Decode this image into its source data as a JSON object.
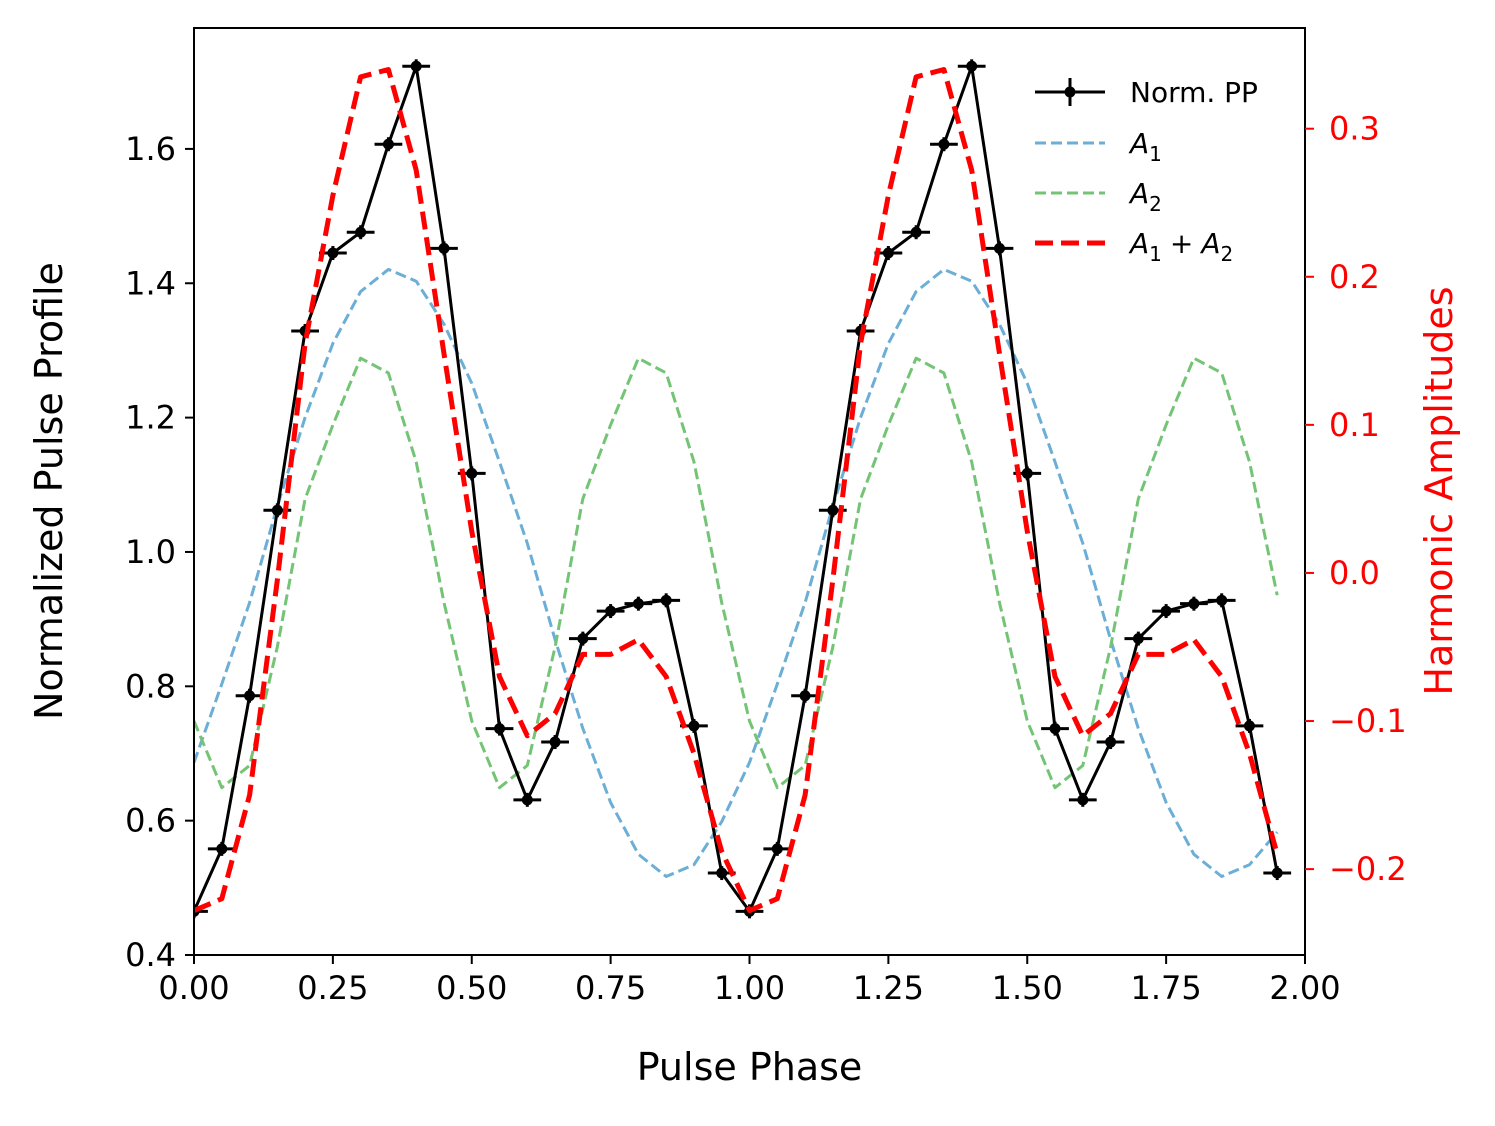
{
  "chart_data": {
    "type": "line",
    "xlabel": "Pulse Phase",
    "ylabel_left": "Normalized Pulse Profile",
    "ylabel_right": "Harmonic Amplitudes",
    "xlim": [
      0.0,
      2.0
    ],
    "ylim_left": [
      0.4,
      1.78
    ],
    "ylim_right": [
      -0.258,
      0.368
    ],
    "grid": false,
    "legend_position": "top-right",
    "colors": {
      "profile": "#000000",
      "a1": "#6baed6",
      "a2": "#74c476",
      "sum": "#ff0000",
      "right_axis": "#ff0000"
    },
    "x_ticks": [
      {
        "value": 0.0,
        "label": "0.00"
      },
      {
        "value": 0.25,
        "label": "0.25"
      },
      {
        "value": 0.5,
        "label": "0.50"
      },
      {
        "value": 0.75,
        "label": "0.75"
      },
      {
        "value": 1.0,
        "label": "1.00"
      },
      {
        "value": 1.25,
        "label": "1.25"
      },
      {
        "value": 1.5,
        "label": "1.50"
      },
      {
        "value": 1.75,
        "label": "1.75"
      },
      {
        "value": 2.0,
        "label": "2.00"
      }
    ],
    "y_left_ticks": [
      {
        "value": 0.4,
        "label": "0.4"
      },
      {
        "value": 0.6,
        "label": "0.6"
      },
      {
        "value": 0.8,
        "label": "0.8"
      },
      {
        "value": 1.0,
        "label": "1.0"
      },
      {
        "value": 1.2,
        "label": "1.2"
      },
      {
        "value": 1.4,
        "label": "1.4"
      },
      {
        "value": 1.6,
        "label": "1.6"
      }
    ],
    "y_right_ticks": [
      {
        "value": -0.2,
        "label": "−0.2"
      },
      {
        "value": -0.1,
        "label": "−0.1"
      },
      {
        "value": 0.0,
        "label": "0.0"
      },
      {
        "value": 0.1,
        "label": "0.1"
      },
      {
        "value": 0.2,
        "label": "0.2"
      },
      {
        "value": 0.3,
        "label": "0.3"
      }
    ],
    "series": [
      {
        "name": "Norm. PP",
        "axis": "left",
        "style": "solid-markers-errorbars",
        "x_err": 0.025,
        "x": [
          0.0,
          0.05,
          0.1,
          0.15,
          0.2,
          0.25,
          0.3,
          0.35,
          0.4,
          0.45,
          0.5,
          0.55,
          0.6,
          0.65,
          0.7,
          0.75,
          0.8,
          0.85,
          0.9,
          0.95,
          1.0,
          1.05,
          1.1,
          1.15,
          1.2,
          1.25,
          1.3,
          1.35,
          1.4,
          1.45,
          1.5,
          1.55,
          1.6,
          1.65,
          1.7,
          1.75,
          1.8,
          1.85,
          1.9,
          1.95
        ],
        "y": [
          0.465,
          0.558,
          0.786,
          1.062,
          1.329,
          1.445,
          1.476,
          1.607,
          1.723,
          1.452,
          1.117,
          0.737,
          0.631,
          0.717,
          0.871,
          0.912,
          0.923,
          0.928,
          0.741,
          0.522,
          0.465,
          0.558,
          0.786,
          1.062,
          1.329,
          1.445,
          1.476,
          1.607,
          1.723,
          1.452,
          1.117,
          0.737,
          0.631,
          0.717,
          0.871,
          0.912,
          0.923,
          0.928,
          0.741,
          0.522
        ]
      },
      {
        "name": "A_1",
        "label_main": "A",
        "label_sub": "1",
        "axis": "right",
        "style": "dashed",
        "x": [
          0.0,
          0.05,
          0.1,
          0.15,
          0.2,
          0.25,
          0.3,
          0.35,
          0.4,
          0.45,
          0.5,
          0.55,
          0.6,
          0.65,
          0.7,
          0.75,
          0.8,
          0.85,
          0.9,
          0.95,
          1.0,
          1.05,
          1.1,
          1.15,
          1.2,
          1.25,
          1.3,
          1.35,
          1.4,
          1.45,
          1.5,
          1.55,
          1.6,
          1.65,
          1.7,
          1.75,
          1.8,
          1.85,
          1.9,
          1.95
        ],
        "y": [
          -0.128,
          -0.075,
          -0.02,
          0.045,
          0.105,
          0.155,
          0.19,
          0.205,
          0.197,
          0.168,
          0.128,
          0.075,
          0.02,
          -0.045,
          -0.105,
          -0.155,
          -0.19,
          -0.205,
          -0.197,
          -0.168,
          -0.128,
          -0.075,
          -0.02,
          0.045,
          0.105,
          0.155,
          0.19,
          0.205,
          0.197,
          0.168,
          0.128,
          0.075,
          0.02,
          -0.045,
          -0.105,
          -0.155,
          -0.19,
          -0.205,
          -0.197,
          -0.175
        ]
      },
      {
        "name": "A_2",
        "label_main": "A",
        "label_sub": "2",
        "axis": "right",
        "style": "dashed",
        "x": [
          0.0,
          0.05,
          0.1,
          0.15,
          0.2,
          0.25,
          0.3,
          0.35,
          0.4,
          0.45,
          0.5,
          0.55,
          0.6,
          0.65,
          0.7,
          0.75,
          0.8,
          0.85,
          0.9,
          0.95,
          1.0,
          1.05,
          1.1,
          1.15,
          1.2,
          1.25,
          1.3,
          1.35,
          1.4,
          1.45,
          1.5,
          1.55,
          1.6,
          1.65,
          1.7,
          1.75,
          1.8,
          1.85,
          1.9,
          1.95
        ],
        "y": [
          -0.1,
          -0.145,
          -0.13,
          -0.05,
          0.05,
          0.1,
          0.145,
          0.135,
          0.075,
          -0.02,
          -0.1,
          -0.145,
          -0.13,
          -0.05,
          0.05,
          0.1,
          0.145,
          0.135,
          0.075,
          -0.02,
          -0.1,
          -0.145,
          -0.13,
          -0.05,
          0.05,
          0.1,
          0.145,
          0.135,
          0.075,
          -0.02,
          -0.1,
          -0.145,
          -0.13,
          -0.05,
          0.05,
          0.1,
          0.145,
          0.135,
          0.075,
          -0.015
        ]
      },
      {
        "name": "A_1 + A_2",
        "label_main": "A",
        "label_sub": "1",
        "label_plus": "+",
        "label_main2": "A",
        "label_sub2": "2",
        "axis": "right",
        "style": "dashed-thick",
        "x": [
          0.0,
          0.05,
          0.1,
          0.15,
          0.2,
          0.25,
          0.3,
          0.35,
          0.4,
          0.45,
          0.5,
          0.55,
          0.6,
          0.65,
          0.7,
          0.75,
          0.8,
          0.85,
          0.9,
          0.95,
          1.0,
          1.05,
          1.1,
          1.15,
          1.2,
          1.25,
          1.3,
          1.35,
          1.4,
          1.45,
          1.5,
          1.55,
          1.6,
          1.65,
          1.7,
          1.75,
          1.8,
          1.85,
          1.9,
          1.95
        ],
        "y": [
          -0.228,
          -0.22,
          -0.15,
          -0.005,
          0.155,
          0.255,
          0.335,
          0.34,
          0.272,
          0.148,
          0.028,
          -0.07,
          -0.11,
          -0.095,
          -0.055,
          -0.055,
          -0.045,
          -0.07,
          -0.122,
          -0.188,
          -0.228,
          -0.22,
          -0.15,
          -0.005,
          0.155,
          0.255,
          0.335,
          0.34,
          0.272,
          0.148,
          0.028,
          -0.07,
          -0.11,
          -0.095,
          -0.055,
          -0.055,
          -0.045,
          -0.07,
          -0.122,
          -0.19
        ]
      }
    ]
  }
}
